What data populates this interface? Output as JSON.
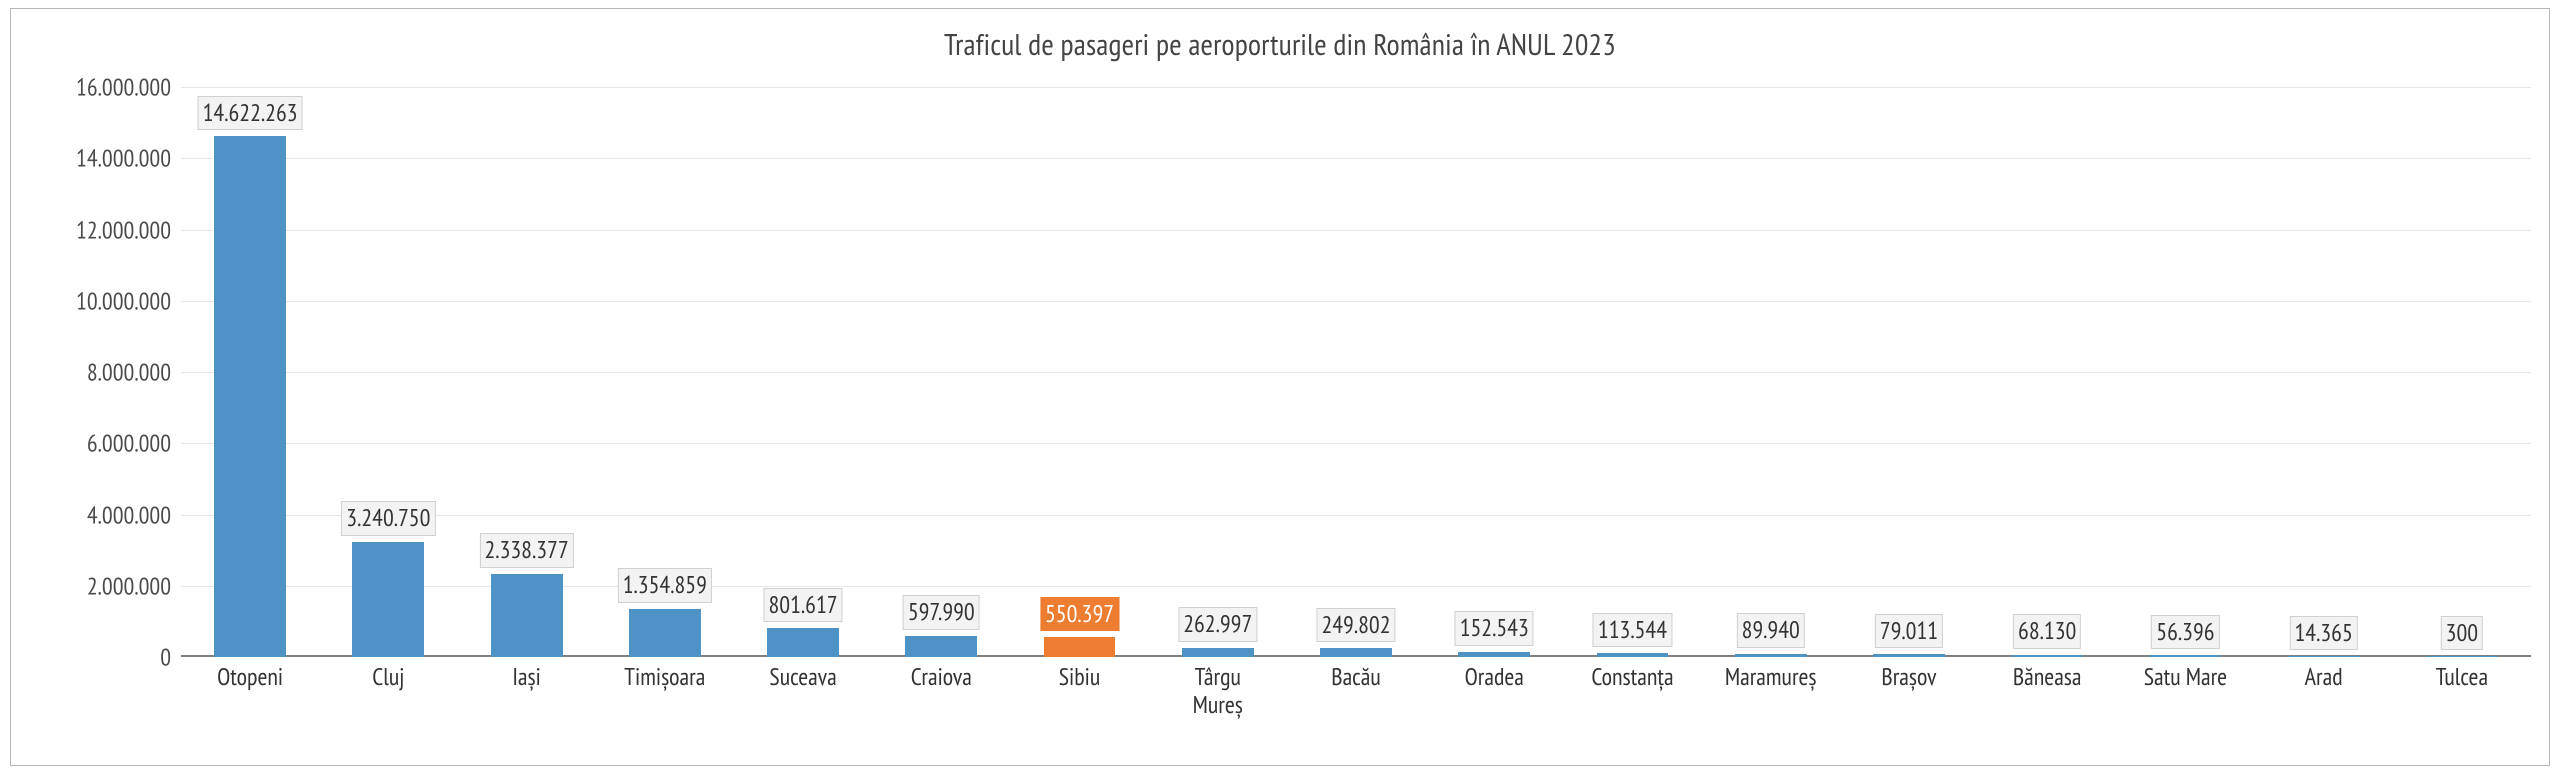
{
  "chart": {
    "type": "bar",
    "title": "Traficul de pasageri pe aeroporturile din România în ANUL 2023",
    "title_fontsize": 30,
    "title_color": "#444444",
    "frame_border_color": "#b7b7b7",
    "background_color": "#ffffff",
    "grid_color": "#e6e6e6",
    "baseline_color": "#808080",
    "default_bar_color": "#4f93c6",
    "highlight_bar_color": "#ed7d31",
    "label_fontsize": 24,
    "label_box_bg": "#f3f3f3",
    "label_box_border": "#d0d0d0",
    "label_text_color": "#333333",
    "highlight_label_text_color": "#ffffff",
    "ylim": [
      0,
      16000000
    ],
    "ytick_step": 2000000,
    "ytick_labels": [
      "0",
      "2.000.000",
      "4.000.000",
      "6.000.000",
      "8.000.000",
      "10.000.000",
      "12.000.000",
      "14.000.000",
      "16.000.000"
    ],
    "ytick_fontsize": 24,
    "ytick_color": "#4a4a4a",
    "categories": [
      "Otopeni",
      "Cluj",
      "Iași",
      "Timișoara",
      "Suceava",
      "Craiova",
      "Sibiu",
      "Târgu\nMureș",
      "Bacău",
      "Oradea",
      "Constanța",
      "Maramureș",
      "Brașov",
      "Băneasa",
      "Satu Mare",
      "Arad",
      "Tulcea"
    ],
    "values": [
      14622263,
      3240750,
      2338377,
      1354859,
      801617,
      597990,
      550397,
      262997,
      249802,
      152543,
      113544,
      89940,
      79011,
      68130,
      56396,
      14365,
      300
    ],
    "value_labels": [
      "14.622.263",
      "3.240.750",
      "2.338.377",
      "1.354.859",
      "801.617",
      "597.990",
      "550.397",
      "262.997",
      "249.802",
      "152.543",
      "113.544",
      "89.940",
      "79.011",
      "68.130",
      "56.396",
      "14.365",
      "300"
    ],
    "highlight_index": 6,
    "bar_width_ratio": 0.52,
    "xlabel_fontsize": 24,
    "xlabel_color": "#333333"
  }
}
